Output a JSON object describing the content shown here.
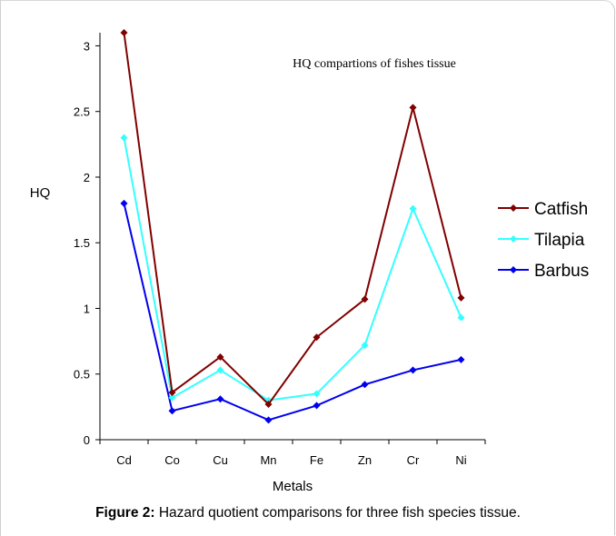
{
  "chart_data": {
    "type": "line",
    "title": "HQ compartions of fishes tissue",
    "xlabel": "Metals",
    "ylabel": "HQ",
    "categories": [
      "Cd",
      "Co",
      "Cu",
      "Mn",
      "Fe",
      "Zn",
      "Cr",
      "Ni"
    ],
    "ylim": [
      0,
      3.1
    ],
    "yticks": [
      "0",
      "0.5",
      "1",
      "1.5",
      "2",
      "2.5",
      "3"
    ],
    "grid": false,
    "legend_position": "right",
    "series": [
      {
        "name": "Catfish",
        "color": "#800000",
        "values": [
          3.1,
          0.36,
          0.63,
          0.27,
          0.78,
          1.07,
          2.53,
          1.08
        ]
      },
      {
        "name": "Tilapia",
        "color": "#33ffff",
        "values": [
          2.3,
          0.32,
          0.53,
          0.3,
          0.35,
          0.72,
          1.76,
          0.93
        ]
      },
      {
        "name": "Barbus",
        "color": "#0000ee",
        "values": [
          1.8,
          0.22,
          0.31,
          0.15,
          0.26,
          0.42,
          0.53,
          0.61
        ]
      }
    ]
  },
  "caption": {
    "label": "Figure 2:",
    "text": "Hazard quotient comparisons for three fish species tissue."
  }
}
